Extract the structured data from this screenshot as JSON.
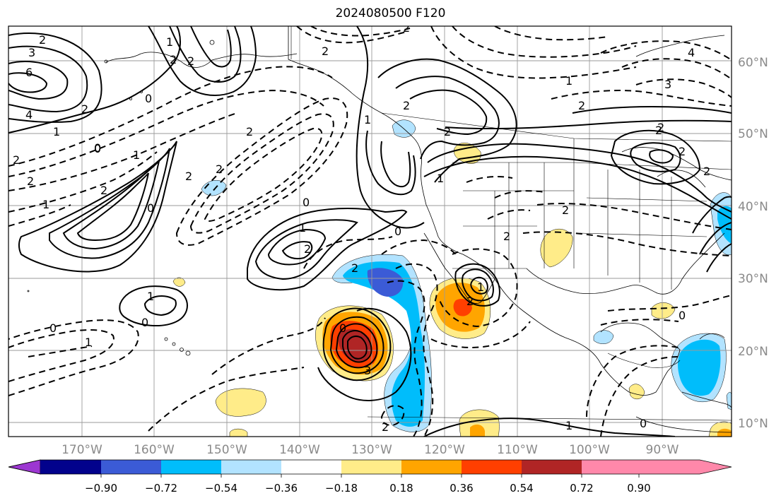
{
  "title": "2024080500 F120",
  "map": {
    "lat_labels": [
      "60°N",
      "50°N",
      "40°N",
      "30°N",
      "20°N",
      "10°N"
    ],
    "lon_labels": [
      "170°W",
      "160°W",
      "150°W",
      "140°W",
      "130°W",
      "120°W",
      "110°W",
      "100°W",
      "90°W"
    ],
    "contour_labels": [
      "2",
      "3",
      "6",
      "4",
      "1",
      "0",
      "2",
      "2",
      "1",
      "0",
      "2",
      "2",
      "1",
      "2",
      "0",
      "2",
      "2",
      "2",
      "2",
      "1",
      "0",
      "1",
      "0",
      "2",
      "2",
      "2",
      "1",
      "0",
      "2",
      "1",
      "1",
      "0",
      "1",
      "2",
      "0",
      "3",
      "2",
      "2",
      "1",
      "0",
      "2",
      "2",
      "1",
      "2",
      "2",
      "2",
      "2",
      "0",
      "2",
      "1",
      "0",
      "4",
      "3",
      "2"
    ]
  },
  "colorbar": {
    "colors": [
      "#9c37d1",
      "#02028c",
      "#3b5bd6",
      "#00bdfb",
      "#b2e3ff",
      "#ffffff",
      "#ffec89",
      "#ffa500",
      "#ff3f00",
      "#b02525",
      "#ff88aa"
    ],
    "tick_labels": [
      "−0.90",
      "−0.72",
      "−0.54",
      "−0.36",
      "−0.18",
      "0.18",
      "0.36",
      "0.54",
      "0.72",
      "0.90"
    ]
  }
}
